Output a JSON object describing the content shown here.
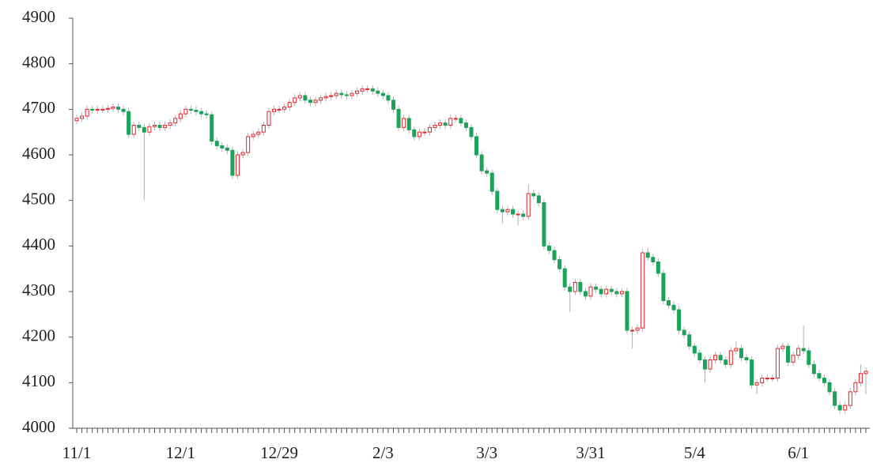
{
  "chart_data": {
    "type": "candlestick",
    "up_color": "#e8202a",
    "down_color": "#1aa35a",
    "wick_color": "#b0b0b0",
    "ylim": [
      4000,
      4900
    ],
    "yticks": [
      4000,
      4100,
      4200,
      4300,
      4400,
      4500,
      4600,
      4700,
      4800,
      4900
    ],
    "grid": false,
    "categories": [
      "11/1",
      null,
      null,
      null,
      null,
      null,
      null,
      null,
      null,
      null,
      null,
      null,
      null,
      null,
      null,
      null,
      null,
      null,
      null,
      null,
      "12/1",
      null,
      null,
      null,
      null,
      null,
      null,
      null,
      null,
      null,
      null,
      null,
      null,
      null,
      null,
      null,
      null,
      null,
      null,
      "12/29",
      null,
      null,
      null,
      null,
      null,
      null,
      null,
      null,
      null,
      null,
      null,
      null,
      null,
      null,
      null,
      null,
      null,
      null,
      null,
      "2/3",
      null,
      null,
      null,
      null,
      null,
      null,
      null,
      null,
      null,
      null,
      null,
      null,
      null,
      null,
      null,
      null,
      null,
      null,
      null,
      "3/3",
      null,
      null,
      null,
      null,
      null,
      null,
      null,
      null,
      null,
      null,
      null,
      null,
      null,
      null,
      null,
      null,
      null,
      null,
      null,
      "3/31",
      null,
      null,
      null,
      null,
      null,
      null,
      null,
      null,
      null,
      null,
      null,
      null,
      null,
      null,
      null,
      null,
      null,
      null,
      null,
      "5/4",
      null,
      null,
      null,
      null,
      null,
      null,
      null,
      null,
      null,
      null,
      null,
      null,
      null,
      null,
      null,
      null,
      null,
      null,
      null,
      "6/1",
      null,
      null,
      null,
      null,
      null,
      null,
      null,
      null,
      null,
      null,
      null,
      null,
      null
    ],
    "open": [
      4675,
      4680,
      4685,
      4700,
      4698,
      4700,
      4700,
      4702,
      4705,
      4700,
      4695,
      4645,
      4665,
      4660,
      4650,
      4662,
      4665,
      4660,
      4665,
      4670,
      4680,
      4690,
      4700,
      4698,
      4695,
      4690,
      4688,
      4630,
      4620,
      4615,
      4610,
      4555,
      4600,
      4605,
      4640,
      4645,
      4650,
      4665,
      4695,
      4700,
      4700,
      4705,
      4715,
      4725,
      4730,
      4720,
      4715,
      4720,
      4725,
      4728,
      4730,
      4735,
      4732,
      4730,
      4735,
      4740,
      4745,
      4745,
      4740,
      4735,
      4730,
      4720,
      4700,
      4660,
      4680,
      4655,
      4640,
      4650,
      4650,
      4660,
      4665,
      4670,
      4665,
      4680,
      4680,
      4670,
      4660,
      4640,
      4600,
      4565,
      4560,
      4520,
      4480,
      4475,
      4480,
      4470,
      4470,
      4465,
      4515,
      4510,
      4495,
      4400,
      4390,
      4370,
      4350,
      4310,
      4300,
      4320,
      4300,
      4290,
      4310,
      4305,
      4295,
      4305,
      4300,
      4295,
      4300,
      4215,
      4215,
      4220,
      4385,
      4375,
      4365,
      4340,
      4280,
      4270,
      4260,
      4215,
      4205,
      4180,
      4165,
      4150,
      4130,
      4150,
      4160,
      4150,
      4140,
      4170,
      4175,
      4155,
      4150,
      4095,
      4100,
      4110,
      4110,
      4110,
      4175,
      4180,
      4145,
      4160,
      4175,
      4170,
      4140,
      4120,
      4110,
      4100,
      4080,
      4050,
      4040,
      4050,
      4080,
      4100,
      4120
    ],
    "high": [
      4688,
      4693,
      4708,
      4708,
      4708,
      4708,
      4710,
      4713,
      4713,
      4708,
      4703,
      4673,
      4673,
      4668,
      4670,
      4673,
      4673,
      4673,
      4678,
      4688,
      4698,
      4708,
      4708,
      4706,
      4703,
      4698,
      4696,
      4638,
      4628,
      4623,
      4618,
      4608,
      4613,
      4648,
      4653,
      4658,
      4673,
      4703,
      4708,
      4708,
      4713,
      4723,
      4733,
      4738,
      4738,
      4728,
      4728,
      4733,
      4736,
      4738,
      4743,
      4743,
      4740,
      4743,
      4748,
      4753,
      4753,
      4753,
      4748,
      4743,
      4738,
      4728,
      4708,
      4688,
      4688,
      4663,
      4658,
      4658,
      4668,
      4673,
      4678,
      4678,
      4688,
      4688,
      4688,
      4678,
      4668,
      4648,
      4608,
      4573,
      4568,
      4528,
      4488,
      4488,
      4488,
      4478,
      4478,
      4535,
      4523,
      4518,
      4503,
      4408,
      4398,
      4378,
      4358,
      4318,
      4328,
      4328,
      4308,
      4318,
      4318,
      4313,
      4313,
      4313,
      4308,
      4308,
      4308,
      4223,
      4228,
      4393,
      4395,
      4383,
      4373,
      4348,
      4288,
      4278,
      4268,
      4223,
      4213,
      4188,
      4173,
      4158,
      4158,
      4168,
      4168,
      4158,
      4178,
      4190,
      4183,
      4163,
      4158,
      4108,
      4118,
      4118,
      4118,
      4183,
      4188,
      4188,
      4168,
      4183,
      4225,
      4178,
      4148,
      4128,
      4118,
      4108,
      4088,
      4058,
      4058,
      4088,
      4108,
      4140,
      4133
    ],
    "low": [
      4667,
      4672,
      4677,
      4690,
      4690,
      4692,
      4692,
      4694,
      4692,
      4687,
      4637,
      4637,
      4652,
      4500,
      4642,
      4654,
      4652,
      4652,
      4657,
      4662,
      4672,
      4682,
      4690,
      4687,
      4682,
      4680,
      4622,
      4612,
      4607,
      4602,
      4547,
      4547,
      4592,
      4597,
      4632,
      4637,
      4642,
      4657,
      4687,
      4692,
      4692,
      4697,
      4707,
      4717,
      4712,
      4707,
      4707,
      4712,
      4717,
      4720,
      4722,
      4724,
      4722,
      4722,
      4727,
      4732,
      4737,
      4732,
      4727,
      4722,
      4712,
      4692,
      4652,
      4652,
      4647,
      4632,
      4632,
      4642,
      4642,
      4652,
      4657,
      4657,
      4657,
      4672,
      4662,
      4652,
      4632,
      4592,
      4557,
      4552,
      4512,
      4472,
      4450,
      4467,
      4462,
      4445,
      4457,
      4457,
      4502,
      4487,
      4392,
      4382,
      4362,
      4342,
      4302,
      4255,
      4292,
      4292,
      4282,
      4282,
      4297,
      4287,
      4287,
      4292,
      4287,
      4287,
      4207,
      4175,
      4207,
      4212,
      4367,
      4357,
      4332,
      4272,
      4262,
      4252,
      4207,
      4197,
      4172,
      4157,
      4142,
      4100,
      4122,
      4142,
      4142,
      4132,
      4132,
      4162,
      4147,
      4142,
      4087,
      4075,
      4092,
      4102,
      4102,
      4102,
      4167,
      4137,
      4137,
      4152,
      4162,
      4132,
      4112,
      4102,
      4092,
      4072,
      4042,
      4032,
      4032,
      4042,
      4072,
      4092,
      4075
    ],
    "close": [
      4680,
      4685,
      4700,
      4698,
      4700,
      4700,
      4702,
      4705,
      4700,
      4695,
      4645,
      4665,
      4660,
      4650,
      4662,
      4665,
      4660,
      4665,
      4670,
      4680,
      4690,
      4700,
      4698,
      4695,
      4690,
      4688,
      4630,
      4620,
      4615,
      4610,
      4555,
      4600,
      4605,
      4640,
      4645,
      4650,
      4665,
      4695,
      4700,
      4700,
      4705,
      4715,
      4725,
      4730,
      4720,
      4715,
      4720,
      4725,
      4728,
      4730,
      4735,
      4732,
      4730,
      4735,
      4740,
      4745,
      4745,
      4740,
      4735,
      4730,
      4720,
      4700,
      4660,
      4680,
      4655,
      4640,
      4650,
      4650,
      4660,
      4665,
      4670,
      4665,
      4680,
      4680,
      4670,
      4660,
      4640,
      4600,
      4565,
      4560,
      4520,
      4480,
      4475,
      4480,
      4470,
      4470,
      4465,
      4515,
      4510,
      4495,
      4400,
      4390,
      4370,
      4350,
      4310,
      4300,
      4320,
      4300,
      4290,
      4310,
      4305,
      4295,
      4305,
      4300,
      4295,
      4300,
      4215,
      4215,
      4220,
      4385,
      4375,
      4365,
      4340,
      4280,
      4270,
      4260,
      4215,
      4205,
      4180,
      4165,
      4150,
      4130,
      4150,
      4160,
      4150,
      4140,
      4170,
      4175,
      4155,
      4150,
      4095,
      4100,
      4110,
      4110,
      4110,
      4175,
      4180,
      4145,
      4160,
      4175,
      4170,
      4140,
      4120,
      4110,
      4100,
      4080,
      4050,
      4040,
      4050,
      4080,
      4100,
      4120,
      4125
    ]
  }
}
